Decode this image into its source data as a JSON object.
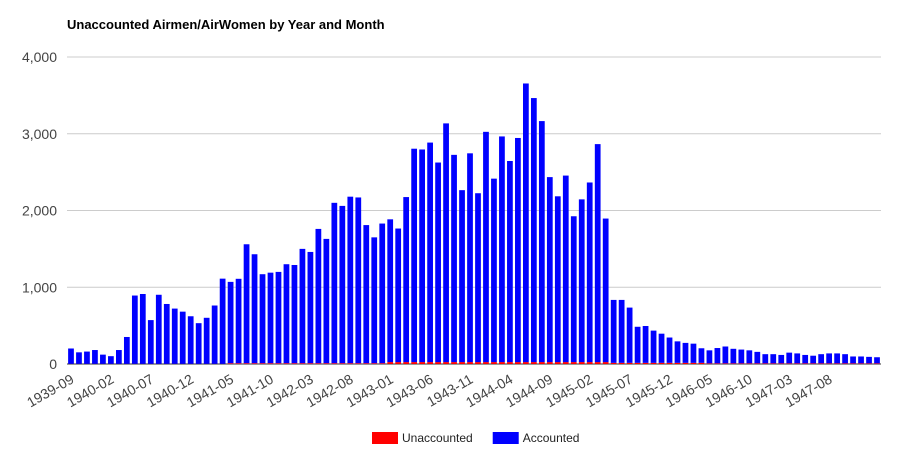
{
  "chart_data": {
    "type": "stacked_bar",
    "title": "Unaccounted Airmen/AirWomen by Year and Month",
    "categories": [
      "1939-09",
      null,
      null,
      null,
      null,
      "1940-02",
      null,
      null,
      null,
      null,
      "1940-07",
      null,
      null,
      null,
      null,
      "1940-12",
      null,
      null,
      null,
      null,
      "1941-05",
      null,
      null,
      null,
      null,
      "1941-10",
      null,
      null,
      null,
      null,
      "1942-03",
      null,
      null,
      null,
      null,
      "1942-08",
      null,
      null,
      null,
      null,
      "1943-01",
      null,
      null,
      null,
      null,
      "1943-06",
      null,
      null,
      null,
      null,
      "1943-11",
      null,
      null,
      null,
      null,
      "1944-04",
      null,
      null,
      null,
      null,
      "1944-09",
      null,
      null,
      null,
      null,
      "1945-02",
      null,
      null,
      null,
      null,
      "1945-07",
      null,
      null,
      null,
      null,
      "1945-12",
      null,
      null,
      null,
      null,
      "1946-05",
      null,
      null,
      null,
      null,
      "1946-10",
      null,
      null,
      null,
      null,
      "1947-03",
      null,
      null,
      null,
      null,
      "1947-08",
      null,
      null,
      null,
      null,
      null,
      null
    ],
    "series": [
      {
        "name": "Unaccounted",
        "color": "#ff0000",
        "values": [
          2,
          2,
          2,
          2,
          2,
          2,
          2,
          2,
          2,
          2,
          2,
          2,
          2,
          2,
          2,
          2,
          2,
          2,
          2,
          2,
          10,
          10,
          10,
          10,
          10,
          10,
          10,
          10,
          10,
          10,
          10,
          10,
          10,
          10,
          10,
          10,
          10,
          10,
          10,
          10,
          25,
          25,
          25,
          25,
          25,
          25,
          25,
          25,
          25,
          25,
          25,
          25,
          25,
          25,
          25,
          25,
          25,
          25,
          25,
          25,
          25,
          25,
          25,
          25,
          25,
          25,
          25,
          25,
          15,
          15,
          15,
          15,
          15,
          15,
          15,
          15,
          15,
          15,
          15,
          15,
          8,
          8,
          8,
          8,
          8,
          8,
          8,
          8,
          8,
          8,
          8,
          8,
          8,
          8,
          8,
          8,
          8,
          8,
          8,
          8,
          8,
          8
        ]
      },
      {
        "name": "Accounted",
        "color": "#0000ff",
        "values": [
          200,
          150,
          160,
          180,
          120,
          100,
          180,
          350,
          890,
          910,
          570,
          900,
          780,
          720,
          680,
          620,
          530,
          600,
          760,
          1110,
          1060,
          1100,
          1550,
          1420,
          1160,
          1180,
          1190,
          1290,
          1280,
          1490,
          1450,
          1750,
          1620,
          2090,
          2050,
          2170,
          2160,
          1800,
          1640,
          1820,
          1860,
          1740,
          2150,
          2780,
          2770,
          2860,
          2600,
          3110,
          2700,
          2240,
          2720,
          2200,
          3000,
          2390,
          2940,
          2620,
          2920,
          3630,
          3440,
          3140,
          2410,
          2160,
          2430,
          1900,
          2120,
          2340,
          2840,
          1870,
          820,
          820,
          720,
          470,
          480,
          420,
          380,
          330,
          280,
          260,
          250,
          190,
          170,
          200,
          220,
          190,
          180,
          170,
          150,
          120,
          120,
          110,
          140,
          130,
          110,
          100,
          120,
          130,
          130,
          120,
          90,
          90,
          85,
          80
        ]
      }
    ],
    "ylim": [
      0,
      4000
    ],
    "yticks": [
      0,
      {
        "value": 1000,
        "label": "1,000"
      },
      {
        "value": 2000,
        "label": "2,000"
      },
      {
        "value": 3000,
        "label": "3,000"
      },
      {
        "value": 4000,
        "label": "4,000"
      }
    ],
    "grid": true,
    "legend": "bottom"
  }
}
